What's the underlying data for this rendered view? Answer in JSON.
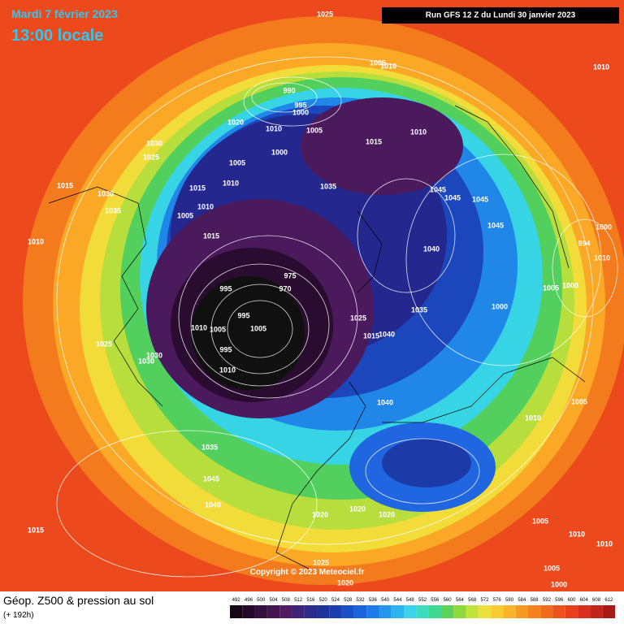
{
  "header": {
    "date": "Mardi 7 février 2023",
    "time": "13:00 locale",
    "run": "Run GFS 12 Z du Lundi 30 janvier 2023"
  },
  "map": {
    "copyright": "Copyright © 2023 Meteociel.fr",
    "pressure_labels": [
      1025,
      1005,
      1010,
      1010,
      990,
      995,
      1000,
      1020,
      1010,
      1005,
      1015,
      1010,
      1000,
      1030,
      1025,
      1005,
      1015,
      1010,
      1035,
      1045,
      1045,
      1045,
      1045,
      1015,
      1030,
      1035,
      1005,
      1010,
      1015,
      1000,
      1010,
      1040,
      994,
      1010,
      995,
      975,
      970,
      995,
      1005,
      1010,
      1005,
      995,
      1010,
      1030,
      1025,
      1030,
      1040,
      1035,
      1040,
      1025,
      1015,
      1010,
      1005,
      1035,
      1045,
      1040,
      1020,
      1020,
      1020,
      1015,
      1005,
      1010,
      1005,
      1000,
      1010,
      1000,
      1020,
      1025,
      1005,
      1000
    ]
  },
  "legend": {
    "title": "Géop. Z500 & pression au sol",
    "subtitle": "(+ 192h)",
    "ticks": [
      492,
      496,
      500,
      504,
      508,
      512,
      516,
      520,
      524,
      528,
      532,
      536,
      540,
      544,
      548,
      552,
      556,
      560,
      564,
      568,
      572,
      576,
      580,
      584,
      588,
      592,
      596,
      600,
      604,
      608,
      612
    ],
    "colors": [
      "#140814",
      "#240a2a",
      "#34103e",
      "#441650",
      "#521c60",
      "#3c2478",
      "#2c2a8c",
      "#20329c",
      "#1a3eb0",
      "#1a50c8",
      "#1c64dc",
      "#1e7ce8",
      "#2496ec",
      "#2cb4ee",
      "#3cd4ec",
      "#3cdcc0",
      "#40d890",
      "#5cd25a",
      "#90d840",
      "#c4e23c",
      "#ece03a",
      "#f8cc30",
      "#fab428",
      "#f89a22",
      "#f6821e",
      "#f26a1c",
      "#ee521c",
      "#e8401c",
      "#d8301c",
      "#c0241a",
      "#a81a18"
    ]
  }
}
